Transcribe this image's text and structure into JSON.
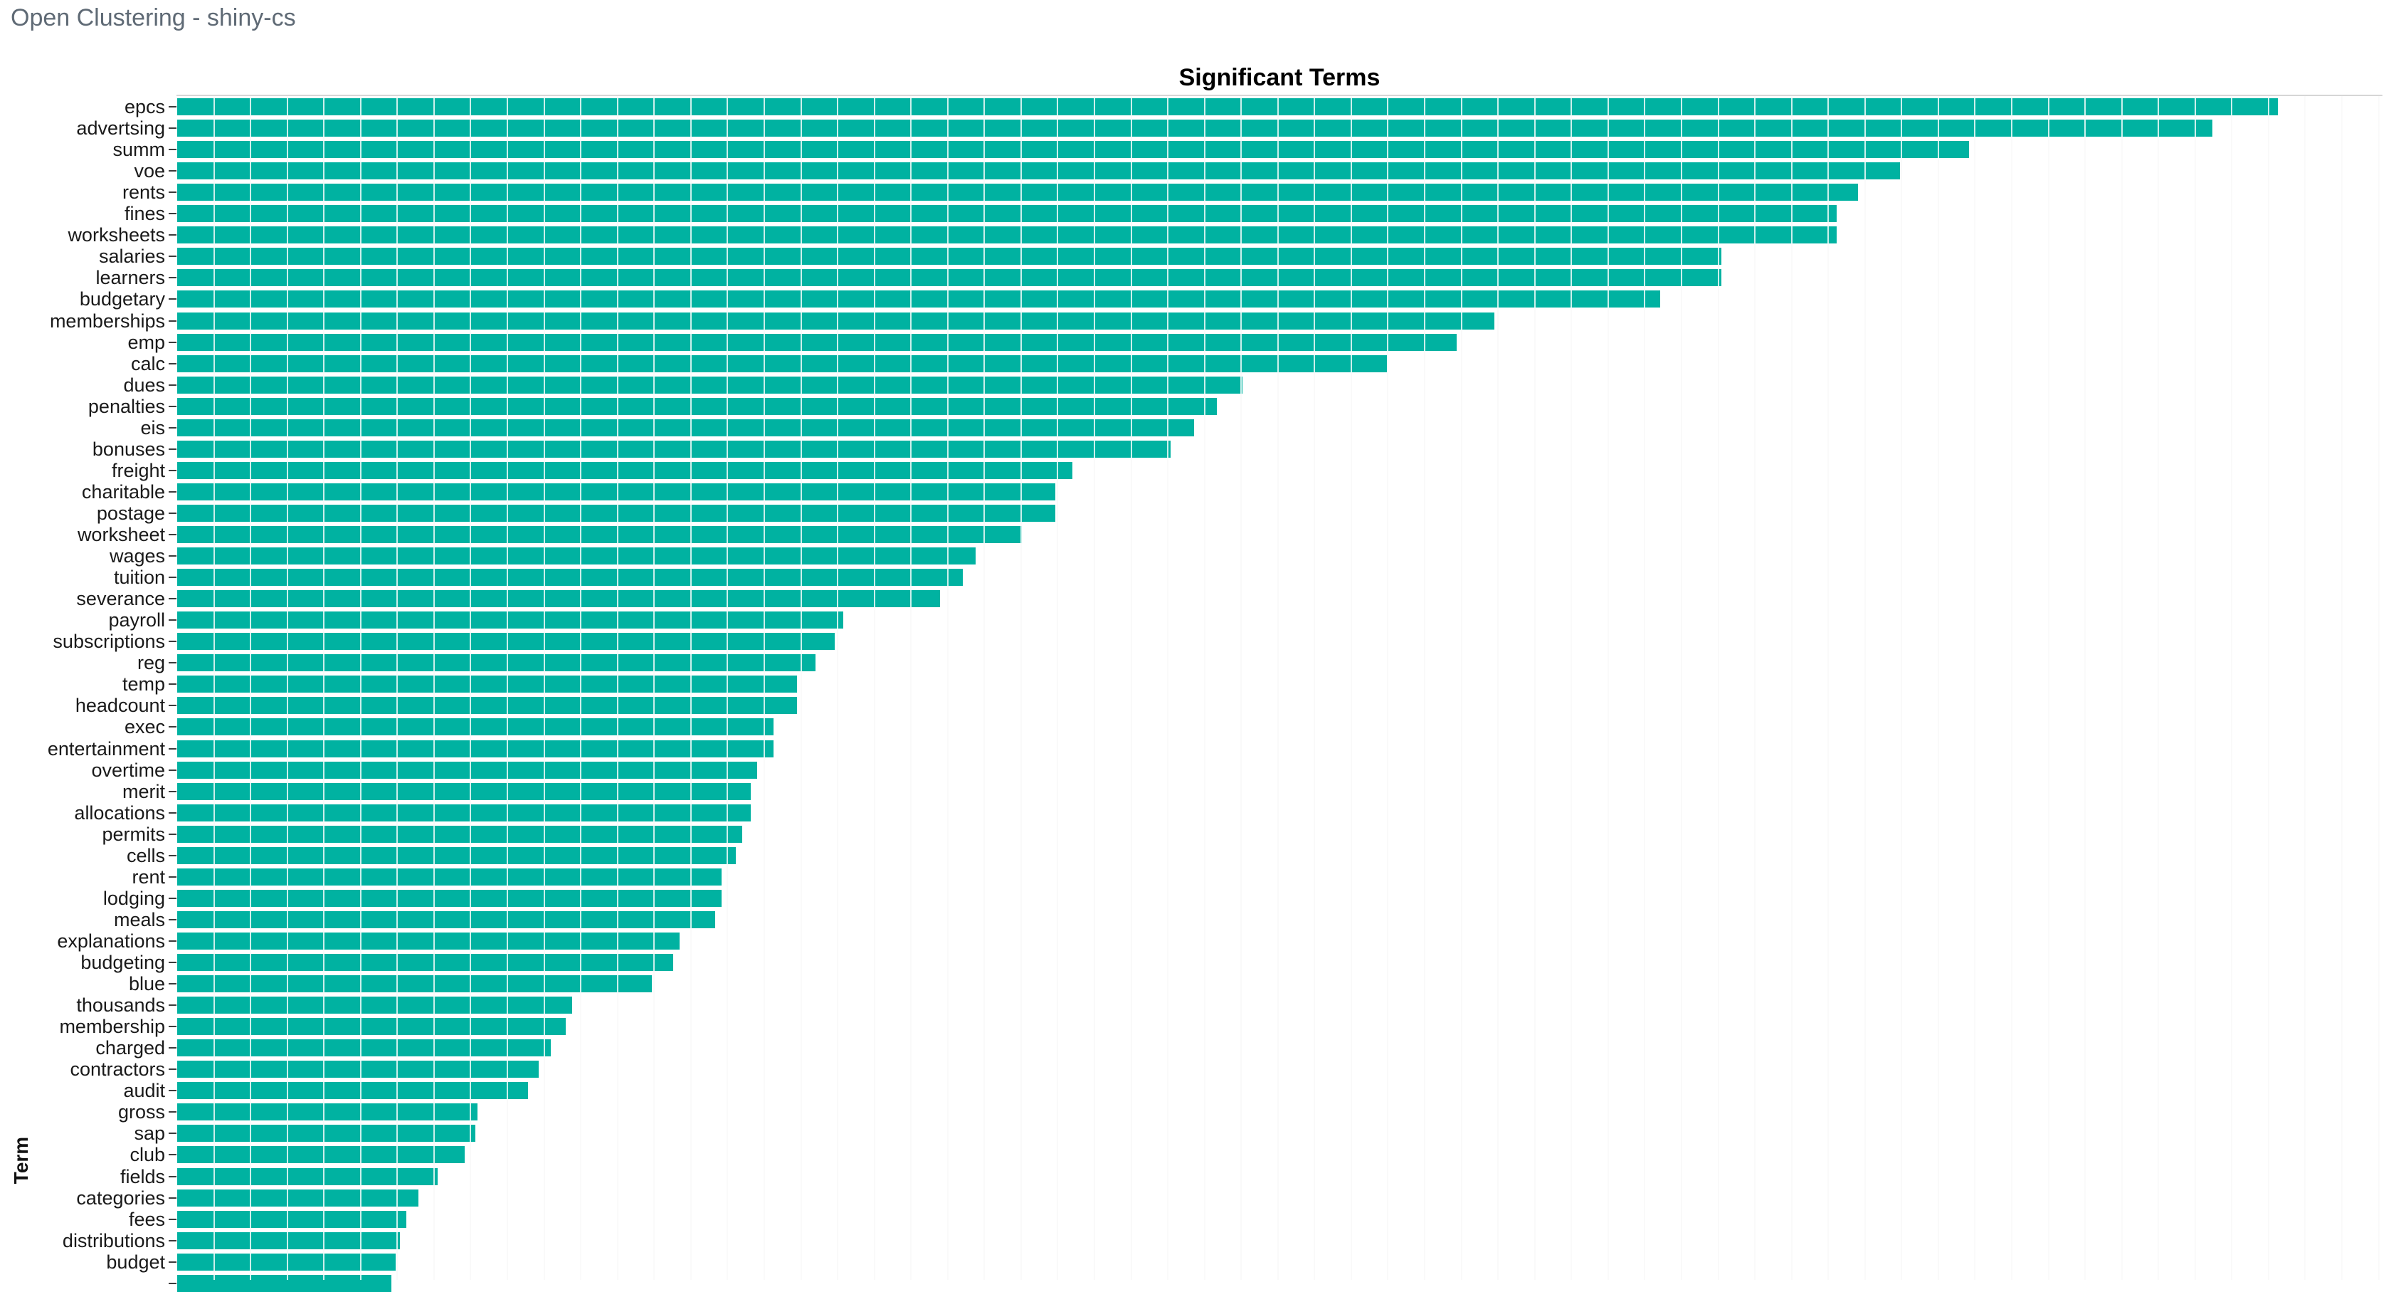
{
  "header": {
    "title": "Open Clustering - shiny-cs"
  },
  "chart_data": {
    "type": "bar",
    "orientation": "horizontal",
    "title": "Significant Terms",
    "ylabel": "Term",
    "xlabel": "",
    "grid": true,
    "legend": false,
    "bar_color": "#00b2a1",
    "gridline_color": "#e3e3e3",
    "axis_note": "x-axis ticks/labels are cut off below the visible viewport; values given as percent of the longest bar (epcs). Last row's bar is clipped at the bottom edge and its label is not visible.",
    "categories": [
      "epcs",
      "advertsing",
      "summ",
      "voe",
      "rents",
      "fines",
      "worksheets",
      "salaries",
      "learners",
      "budgetary",
      "memberships",
      "emp",
      "calc",
      "dues",
      "penalties",
      "eis",
      "bonuses",
      "freight",
      "charitable",
      "postage",
      "worksheet",
      "wages",
      "tuition",
      "severance",
      "payroll",
      "subscriptions",
      "reg",
      "temp",
      "headcount",
      "exec",
      "entertainment",
      "overtime",
      "merit",
      "allocations",
      "permits",
      "cells",
      "rent",
      "lodging",
      "meals",
      "explanations",
      "budgeting",
      "blue",
      "thousands",
      "membership",
      "charged",
      "contractors",
      "audit",
      "gross",
      "sap",
      "club",
      "fields",
      "categories",
      "fees",
      "distributions",
      "budget",
      ""
    ],
    "values_pct_of_max": [
      100,
      96.9,
      85.3,
      82.0,
      80.0,
      79.0,
      79.0,
      73.5,
      73.5,
      70.6,
      62.7,
      60.9,
      57.6,
      50.7,
      49.5,
      48.4,
      47.3,
      42.6,
      41.8,
      41.8,
      40.2,
      38.0,
      37.4,
      36.3,
      31.7,
      31.3,
      30.4,
      29.5,
      29.5,
      28.4,
      28.4,
      27.6,
      27.3,
      27.3,
      26.9,
      26.6,
      25.9,
      25.9,
      25.6,
      23.9,
      23.6,
      22.6,
      18.8,
      18.5,
      17.8,
      17.2,
      16.7,
      14.3,
      14.2,
      13.7,
      12.4,
      11.5,
      10.9,
      10.6,
      10.4,
      10.2
    ]
  }
}
